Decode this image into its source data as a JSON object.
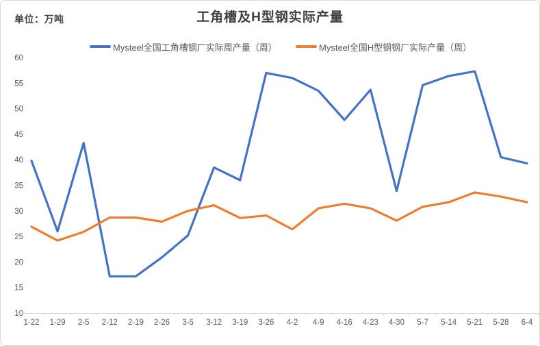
{
  "header": {
    "unit_label": "单位：万吨",
    "title": "工角槽及H型钢实际产量"
  },
  "legend": [
    {
      "label": "Mysteel全国工角槽钢厂实际周产量（周）",
      "color": "#4472C4"
    },
    {
      "label": "Mysteel全国H型钢钢厂实际产量（周）",
      "color": "#ED7D31"
    }
  ],
  "chart_data": {
    "type": "line",
    "title": "工角槽及H型钢实际产量",
    "unit": "万吨",
    "categories": [
      "1-22",
      "1-29",
      "2-5",
      "2-12",
      "2-19",
      "2-26",
      "3-5",
      "3-12",
      "3-19",
      "3-26",
      "4-2",
      "4-9",
      "4-16",
      "4-23",
      "4-30",
      "5-7",
      "5-14",
      "5-21",
      "5-28",
      "6-4"
    ],
    "series": [
      {
        "name": "Mysteel全国工角槽钢厂实际周产量（周）",
        "color": "#4472C4",
        "values": [
          39.8,
          26.0,
          43.3,
          17.2,
          17.2,
          20.9,
          25.2,
          38.5,
          36.0,
          57.0,
          56.0,
          53.5,
          47.8,
          53.7,
          33.9,
          54.6,
          56.4,
          57.3,
          40.5,
          39.3
        ]
      },
      {
        "name": "Mysteel全国H型钢钢厂实际产量（周）",
        "color": "#ED7D31",
        "values": [
          26.9,
          24.2,
          25.9,
          28.7,
          28.7,
          27.9,
          30.0,
          31.1,
          28.6,
          29.1,
          26.4,
          30.5,
          31.4,
          30.5,
          28.1,
          30.8,
          31.7,
          33.6,
          32.8,
          31.7
        ]
      }
    ],
    "ylim": [
      10,
      60
    ],
    "ytick_step": 5,
    "grid": false,
    "legend_position": "top",
    "axis_color": "#D9D9D9",
    "label_color": "#595959"
  }
}
